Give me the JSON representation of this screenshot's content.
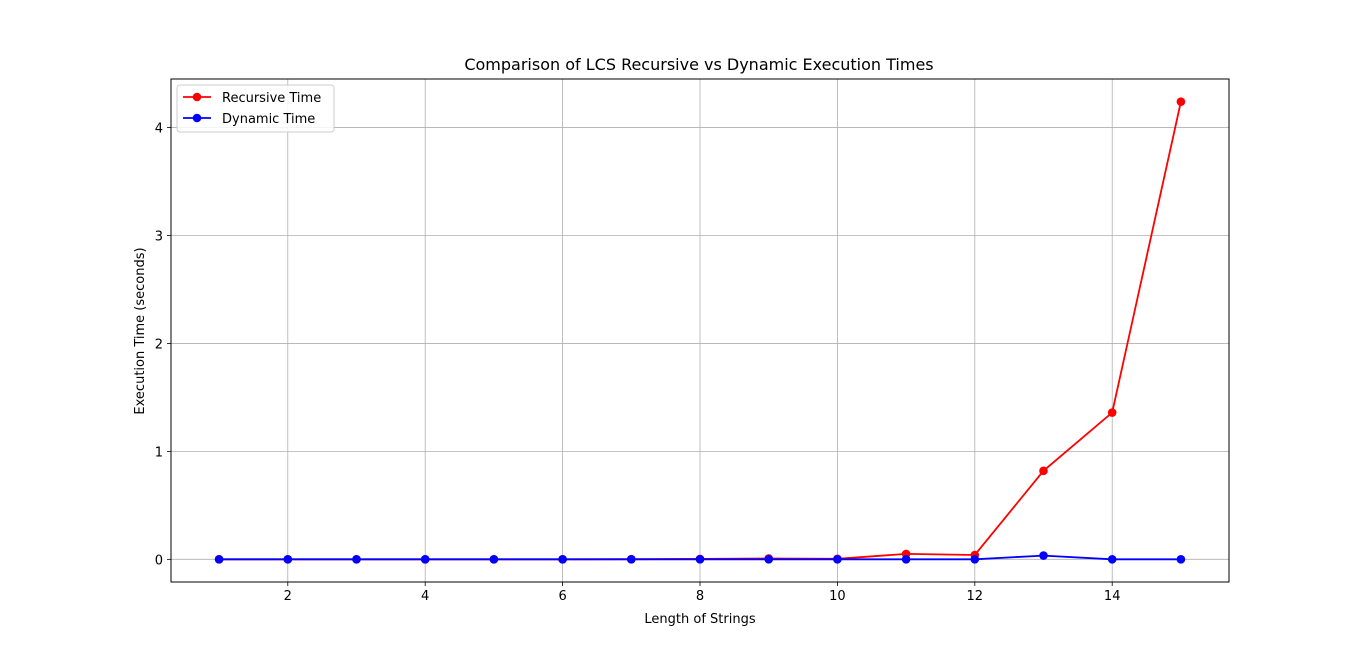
{
  "chart_data": {
    "type": "line",
    "title": "Comparison of LCS Recursive vs Dynamic Execution Times",
    "xlabel": "Length of Strings",
    "ylabel": "Execution Time (seconds)",
    "x": [
      1,
      2,
      3,
      4,
      5,
      6,
      7,
      8,
      9,
      10,
      11,
      12,
      13,
      14,
      15
    ],
    "xlim": [
      0.3,
      15.7
    ],
    "ylim": [
      -0.21,
      4.45
    ],
    "xticks": [
      2,
      4,
      6,
      8,
      10,
      12,
      14
    ],
    "yticks": [
      0,
      1,
      2,
      3,
      4
    ],
    "grid": true,
    "legend_position": "top-left",
    "series": [
      {
        "name": "Recursive Time",
        "color": "#ff0000",
        "marker": "circle",
        "values": [
          0.0,
          0.0,
          0.0,
          0.0,
          0.0,
          0.0,
          0.001,
          0.004,
          0.008,
          0.005,
          0.05,
          0.04,
          0.82,
          1.36,
          4.24
        ]
      },
      {
        "name": "Dynamic Time",
        "color": "#0000ff",
        "marker": "circle",
        "values": [
          0.0,
          0.0,
          0.0,
          0.0,
          0.0,
          0.0,
          0.0,
          0.0,
          0.0,
          0.0,
          0.0,
          0.0,
          0.035,
          0.0,
          0.0
        ]
      }
    ]
  }
}
